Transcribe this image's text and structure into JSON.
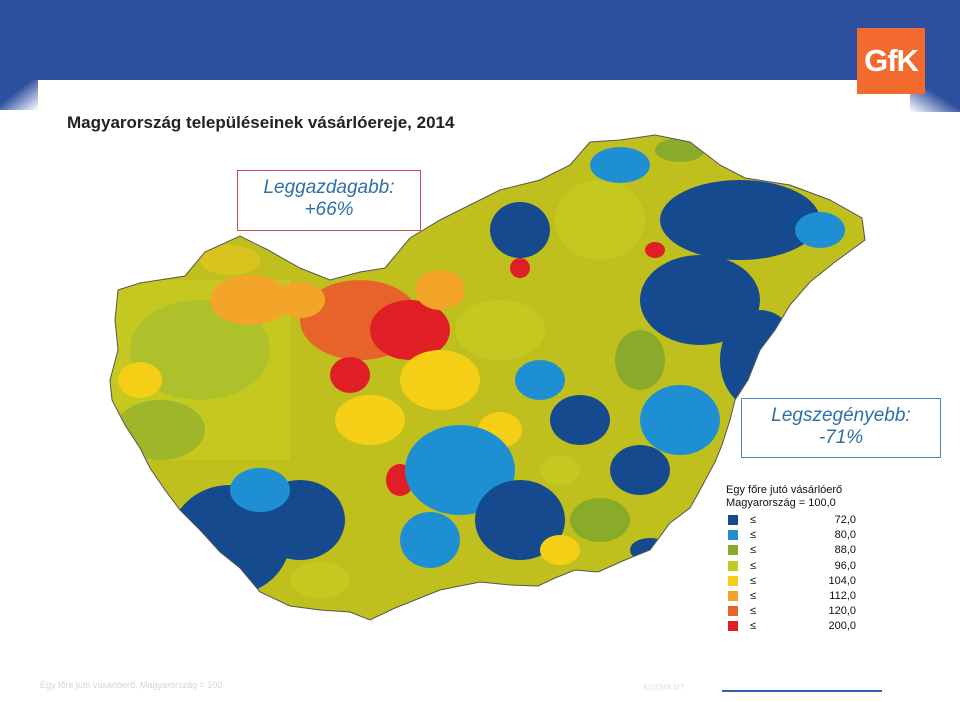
{
  "title": "Magyarország településeinek vásárlóereje, 2014",
  "logo_text": "GfK",
  "callout_rich": {
    "line1": "Leggazdagabb:",
    "line2": "+66%"
  },
  "callout_poor": {
    "line1": "Legszegényebb:",
    "line2": "-71%"
  },
  "legend": {
    "title_line1": "Egy főre jutó vásárlóerő",
    "title_line2": "Magyarország = 100,0",
    "items": [
      {
        "symbol": "≤",
        "value": "72,0",
        "color": "#154a8f"
      },
      {
        "symbol": "≤",
        "value": "80,0",
        "color": "#1e8fd2"
      },
      {
        "symbol": "≤",
        "value": "88,0",
        "color": "#8aab2a"
      },
      {
        "symbol": "≤",
        "value": "96,0",
        "color": "#c5c81e"
      },
      {
        "symbol": "≤",
        "value": "104,0",
        "color": "#f4cf16"
      },
      {
        "symbol": "≤",
        "value": "112,0",
        "color": "#f3a52a"
      },
      {
        "symbol": "≤",
        "value": "120,0",
        "color": "#e8632a"
      },
      {
        "symbol": "≤",
        "value": "200,0",
        "color": "#e01e25"
      }
    ]
  },
  "footer": {
    "left": "Egy főre jutó vásárlóerő, Magyarország = 100",
    "mid": "KOZMA MT"
  }
}
